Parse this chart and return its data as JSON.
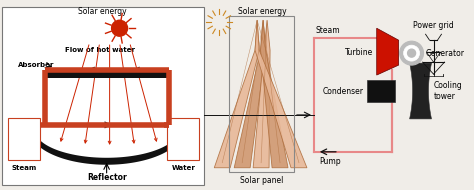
{
  "bg_color": "#f0ede8",
  "box1_color": "#888888",
  "pipe_color": "#c84020",
  "sun1_color": "#cc2200",
  "sun2_color": "#cc8822",
  "panel_color1": "#e8b898",
  "panel_color2": "#d09870",
  "panel_dark": "#b07040",
  "red_turbine": "#cc1100",
  "dark": "#111111",
  "gray_gen": "#bbbbbb",
  "pink_pipe": "#e88888",
  "labels": {
    "solar_energy_1": "Solar energy",
    "solar_energy_2": "Solar energy",
    "flow_hot_water": "Flow of hot water",
    "absorber": "Absorber",
    "steam_left": "Steam",
    "water": "Water",
    "reflector": "Reflector",
    "solar_panel": "Solar panel",
    "steam_right": "Steam",
    "turbine": "Turbine",
    "generator": "Generator",
    "condenser": "Condenser",
    "pump": "Pump",
    "power_grid": "Power grid",
    "cooling_tower": "Cooling\ntower"
  }
}
